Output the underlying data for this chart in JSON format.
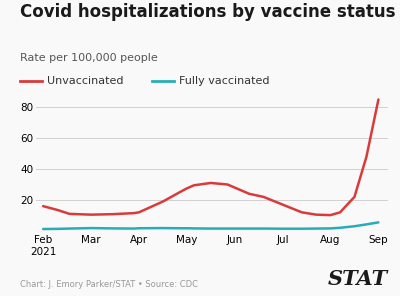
{
  "title": "Covid hospitalizations by vaccine status",
  "subtitle": "Rate per 100,000 people",
  "footnote": "Chart: J. Emory Parker/STAT • Source: CDC",
  "stat_label": "STAT",
  "legend": [
    "Unvaccinated",
    "Fully vaccinated"
  ],
  "line_colors": [
    "#d93b3b",
    "#29adb5"
  ],
  "x_labels": [
    "Feb\n2021",
    "Mar",
    "Apr",
    "May",
    "Jun",
    "Jul",
    "Aug",
    "Sep"
  ],
  "x_positions": [
    0,
    1,
    2,
    3,
    4,
    5,
    6,
    7
  ],
  "x_fine": [
    0,
    0.3,
    0.55,
    1.0,
    1.45,
    1.9,
    2.0,
    2.5,
    2.85,
    3.0,
    3.15,
    3.5,
    3.85,
    4.0,
    4.3,
    4.6,
    5.0,
    5.4,
    5.7,
    6.0,
    6.2,
    6.5,
    6.75,
    7.0
  ],
  "unvaccinated_fine": [
    16.0,
    13.5,
    11.0,
    10.5,
    10.8,
    11.5,
    12.0,
    19.0,
    25.0,
    27.5,
    29.5,
    31.0,
    30.0,
    28.0,
    24.0,
    22.0,
    17.0,
    12.0,
    10.5,
    10.2,
    12.0,
    22.0,
    48.0,
    85.0
  ],
  "vaccinated_fine": [
    1.2,
    1.3,
    1.5,
    1.8,
    1.6,
    1.5,
    1.7,
    1.8,
    1.7,
    1.7,
    1.6,
    1.5,
    1.5,
    1.5,
    1.5,
    1.5,
    1.4,
    1.4,
    1.5,
    1.6,
    2.0,
    3.0,
    4.2,
    5.5
  ],
  "ylim": [
    0,
    90
  ],
  "yticks": [
    20,
    40,
    60,
    80
  ],
  "background_color": "#f9f9f9",
  "grid_color": "#d0d0d0",
  "title_fontsize": 12,
  "subtitle_fontsize": 8,
  "tick_fontsize": 7.5,
  "legend_fontsize": 8
}
